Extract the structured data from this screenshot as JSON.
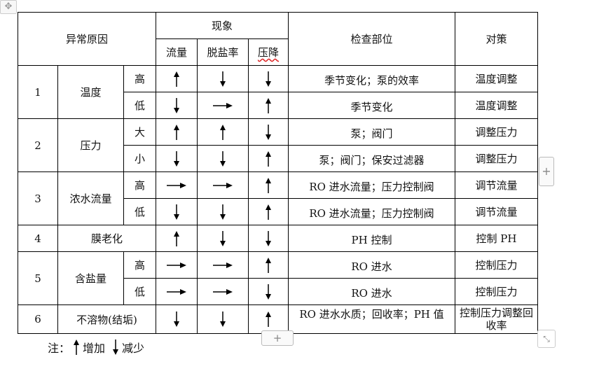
{
  "header": {
    "cause": "异常原因",
    "phenomenon": "现象",
    "flow": "流量",
    "desalination": "脱盐率",
    "pressure_drop": "压降",
    "check": "检查部位",
    "measure": "对策"
  },
  "rows": [
    {
      "no": "1",
      "cause": "温度",
      "level": "高",
      "arrows": [
        "up",
        "down",
        "down"
      ],
      "check": "季节变化；泵的效率",
      "measure": "温度调整"
    },
    {
      "no": "",
      "cause": "",
      "level": "低",
      "arrows": [
        "down",
        "right",
        "up"
      ],
      "check": "季节变化",
      "measure": "温度调整"
    },
    {
      "no": "2",
      "cause": "压力",
      "level": "大",
      "arrows": [
        "up",
        "up",
        "down"
      ],
      "check": "泵；阀门",
      "measure": "调整压力"
    },
    {
      "no": "",
      "cause": "",
      "level": "小",
      "arrows": [
        "down",
        "down",
        "up"
      ],
      "check": "泵；阀门；保安过滤器",
      "measure": "调整压力"
    },
    {
      "no": "3",
      "cause": "浓水流量",
      "level": "高",
      "arrows": [
        "right",
        "right",
        "up"
      ],
      "check": "RO 进水流量；压力控制阀",
      "measure": "调节流量"
    },
    {
      "no": "",
      "cause": "",
      "level": "低",
      "arrows": [
        "down",
        "down",
        "up"
      ],
      "check": "RO 进水流量；压力控制阀",
      "measure": "调节流量"
    },
    {
      "no": "4",
      "cause": "膜老化",
      "level": "",
      "arrows": [
        "up",
        "down",
        "down"
      ],
      "check": "PH 控制",
      "measure": "控制 PH"
    },
    {
      "no": "5",
      "cause": "含盐量",
      "level": "高",
      "arrows": [
        "right",
        "right",
        "up"
      ],
      "check": "RO 进水",
      "measure": "控制压力"
    },
    {
      "no": "",
      "cause": "",
      "level": "低",
      "arrows": [
        "right",
        "right",
        "down"
      ],
      "check": "RO 进水",
      "measure": "控制压力"
    },
    {
      "no": "6",
      "cause": "不溶物(结垢)",
      "level": "",
      "arrows": [
        "down",
        "down",
        "up"
      ],
      "check": "RO 进水水质；回收率；PH 值",
      "measure": "控制压力调整回收率"
    }
  ],
  "note": {
    "label": "注：",
    "increase": "增加",
    "decrease": "减少"
  },
  "controls": {
    "add_row": "+",
    "add_col": "+",
    "move": "✥",
    "resize": "⤡"
  }
}
